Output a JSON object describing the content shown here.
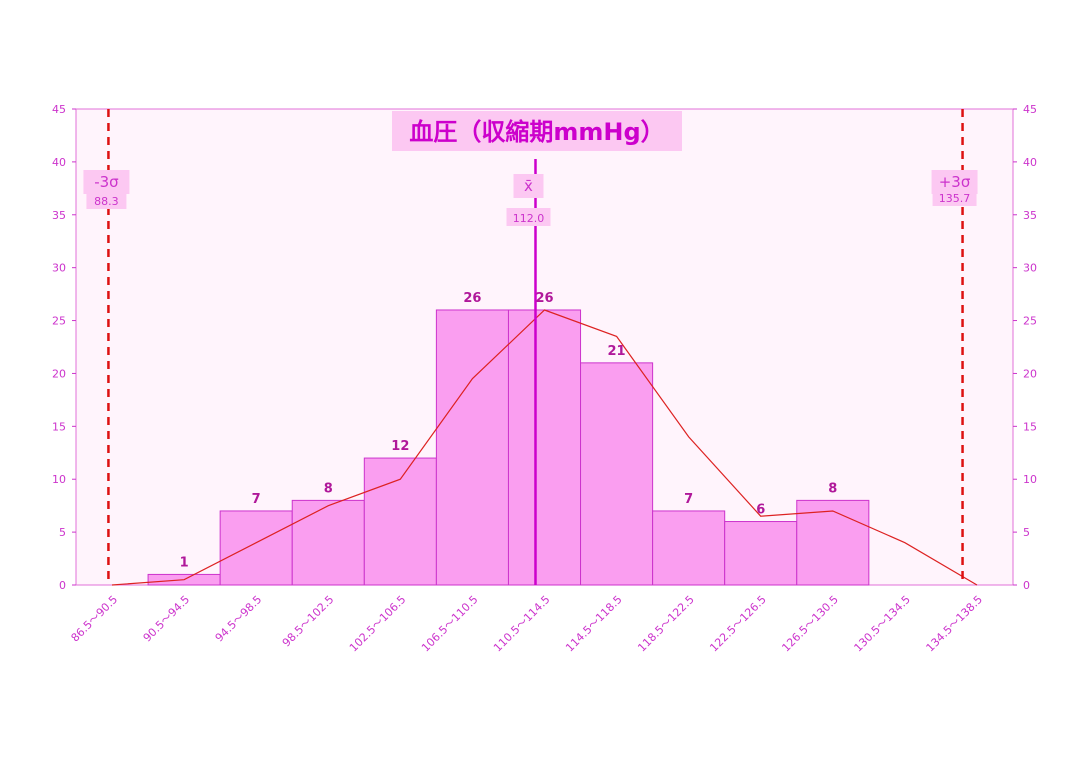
{
  "chart_data": {
    "type": "bar",
    "title": "血圧（収縮期mmHg）",
    "categories": [
      "86.5～90.5",
      "90.5～94.5",
      "94.5～98.5",
      "98.5～102.5",
      "102.5～106.5",
      "106.5～110.5",
      "110.5～114.5",
      "114.5～118.5",
      "118.5～122.5",
      "122.5～126.5",
      "126.5～130.5",
      "130.5～134.5",
      "134.5～138.5"
    ],
    "values": [
      0,
      1,
      7,
      8,
      12,
      26,
      26,
      21,
      7,
      6,
      8,
      0,
      0
    ],
    "data_labels": [
      "",
      "1",
      "7",
      "8",
      "12",
      "26",
      "26",
      "21",
      "7",
      "6",
      "8",
      "",
      ""
    ],
    "curve": [
      0,
      0.5,
      4,
      7.5,
      10,
      19.5,
      26,
      23.5,
      14,
      6.5,
      7,
      4,
      0
    ],
    "ylim": [
      0,
      45
    ],
    "yticks": [
      0,
      5,
      10,
      15,
      20,
      25,
      30,
      35,
      40,
      45
    ],
    "lines": {
      "minus3sigma": {
        "label": "-3σ",
        "value": 88.3,
        "value_text": "88.3"
      },
      "mean": {
        "label": "x̄",
        "value": 112.0,
        "value_text": "112.0"
      },
      "plus3sigma": {
        "label": "+3σ",
        "value": 135.7,
        "value_text": "135.7"
      }
    },
    "colors": {
      "bar_fill": "#fa9ef0",
      "bar_stroke": "#cc33cc",
      "curve": "#dd2222",
      "sigma_line": "#dd1111",
      "mean_line": "#cc00cc",
      "plot_bg": "#fff4fc",
      "label_bg": "#fcc8f2"
    }
  }
}
